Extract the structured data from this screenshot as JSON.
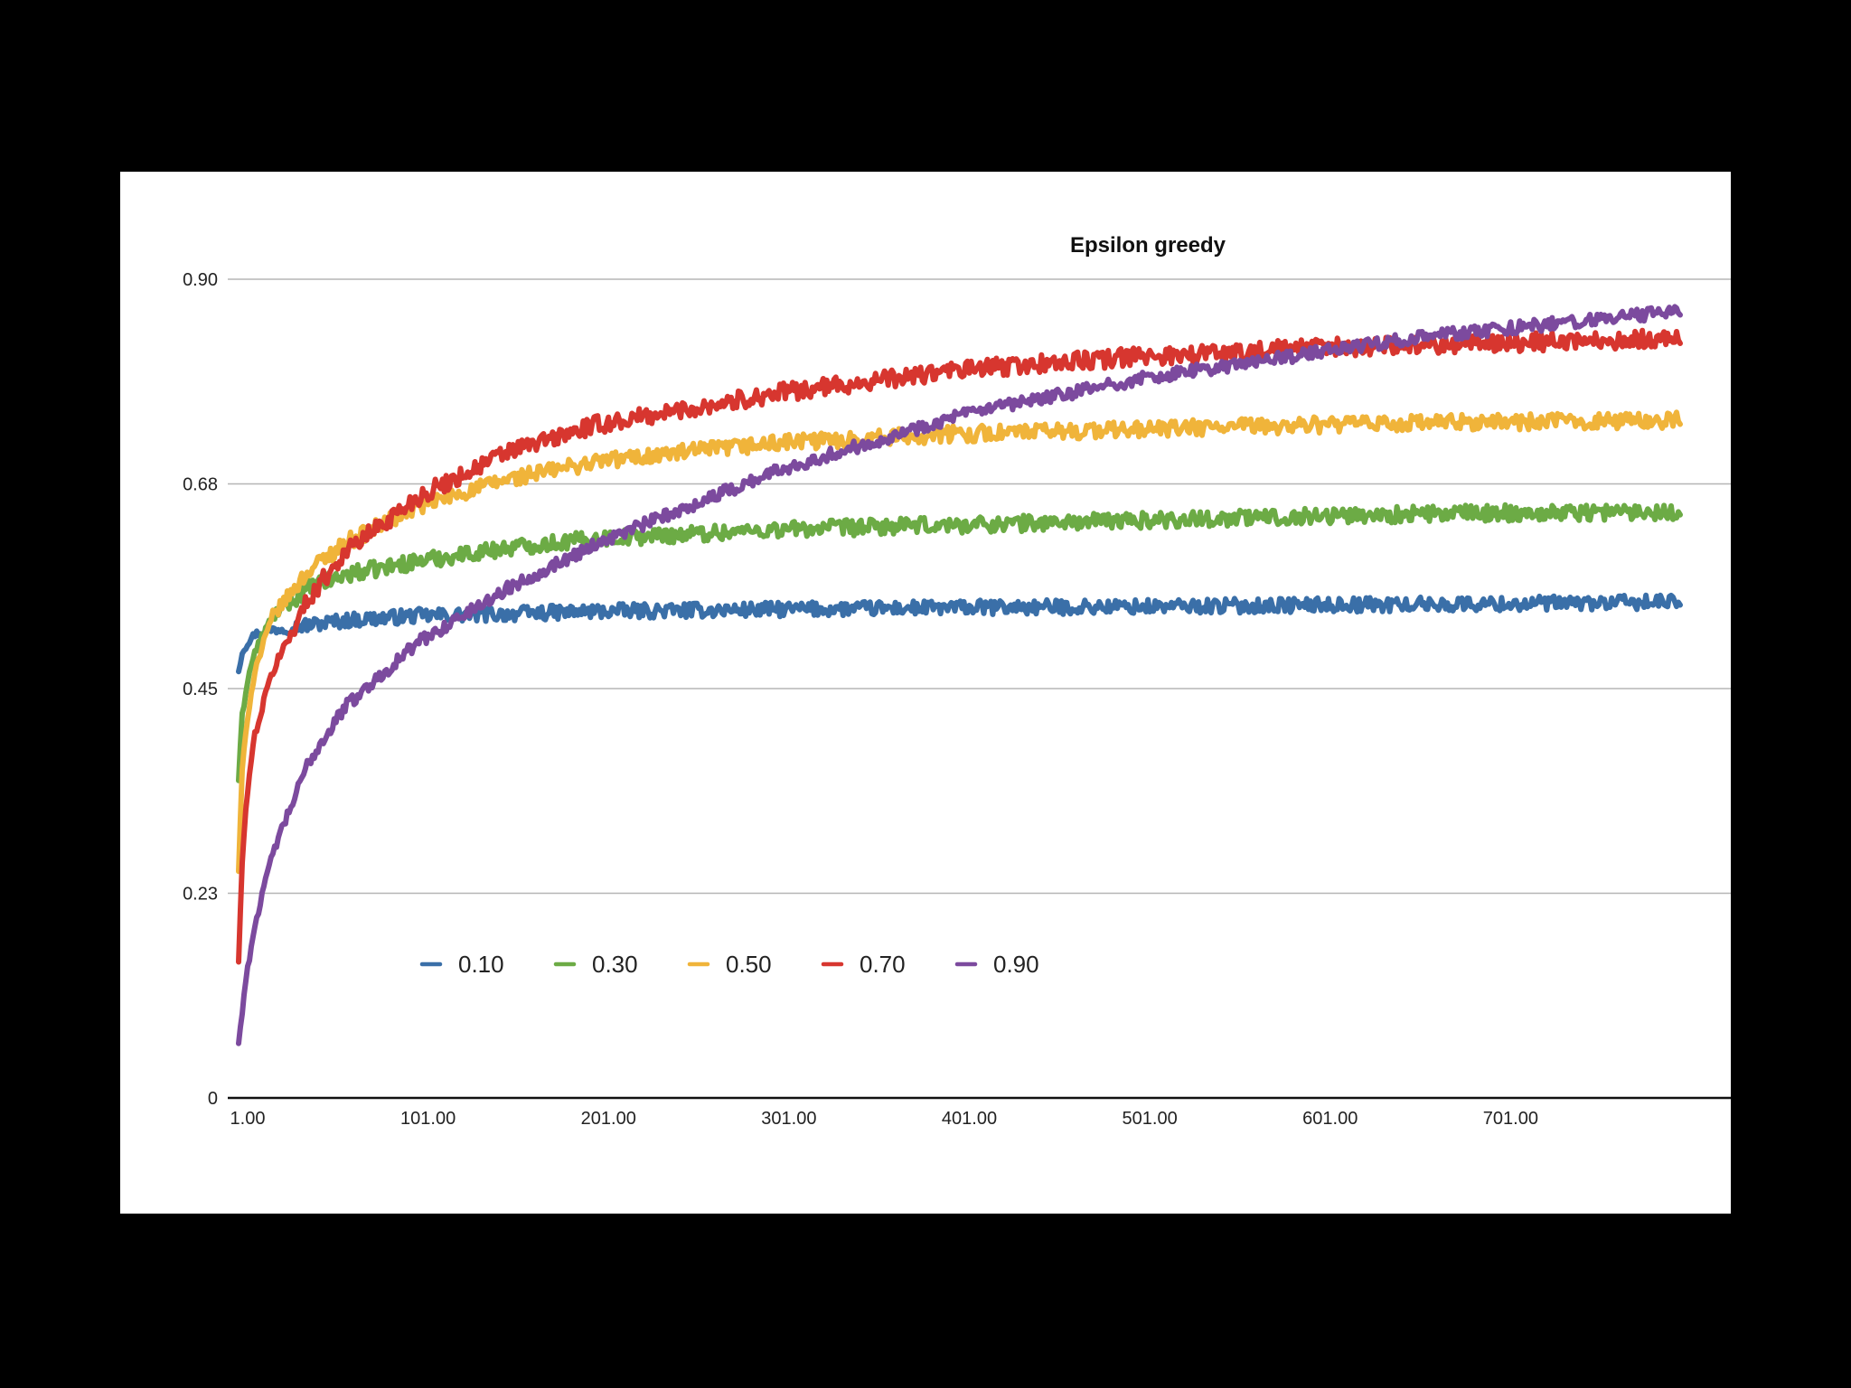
{
  "chart_data": {
    "type": "line",
    "title": "Epsilon greedy",
    "xlabel": "",
    "ylabel": "",
    "xlim": [
      1,
      801
    ],
    "ylim": [
      0,
      0.9
    ],
    "grid": true,
    "legend_position": "lower-left",
    "x_ticks": [
      1,
      101,
      201,
      301,
      401,
      501,
      601,
      701
    ],
    "x_tick_labels": [
      "1.00",
      "101.00",
      "201.00",
      "301.00",
      "401.00",
      "501.00",
      "601.00",
      "701.00"
    ],
    "y_ticks": [
      0,
      0.225,
      0.45,
      0.675,
      0.9
    ],
    "y_tick_labels": [
      "0",
      "0.23",
      "0.45",
      "0.68",
      "0.90"
    ],
    "series": [
      {
        "name": "0.10",
        "color": "#3a6fa8",
        "noise": 0.008,
        "points": [
          [
            1,
            0.47
          ],
          [
            3,
            0.49
          ],
          [
            6,
            0.5
          ],
          [
            10,
            0.51
          ],
          [
            20,
            0.515
          ],
          [
            40,
            0.52
          ],
          [
            60,
            0.525
          ],
          [
            100,
            0.53
          ],
          [
            150,
            0.532
          ],
          [
            200,
            0.535
          ],
          [
            300,
            0.537
          ],
          [
            400,
            0.539
          ],
          [
            500,
            0.54
          ],
          [
            600,
            0.542
          ],
          [
            700,
            0.543
          ],
          [
            800,
            0.545
          ]
        ]
      },
      {
        "name": "0.30",
        "color": "#6cab45",
        "noise": 0.009,
        "points": [
          [
            1,
            0.35
          ],
          [
            3,
            0.42
          ],
          [
            6,
            0.46
          ],
          [
            10,
            0.49
          ],
          [
            20,
            0.53
          ],
          [
            40,
            0.56
          ],
          [
            60,
            0.575
          ],
          [
            100,
            0.59
          ],
          [
            150,
            0.605
          ],
          [
            200,
            0.615
          ],
          [
            300,
            0.625
          ],
          [
            400,
            0.63
          ],
          [
            500,
            0.635
          ],
          [
            600,
            0.64
          ],
          [
            700,
            0.643
          ],
          [
            800,
            0.645
          ]
        ]
      },
      {
        "name": "0.50",
        "color": "#f0b43a",
        "noise": 0.009,
        "points": [
          [
            1,
            0.25
          ],
          [
            3,
            0.36
          ],
          [
            6,
            0.42
          ],
          [
            10,
            0.47
          ],
          [
            20,
            0.53
          ],
          [
            40,
            0.58
          ],
          [
            60,
            0.61
          ],
          [
            100,
            0.65
          ],
          [
            150,
            0.68
          ],
          [
            200,
            0.7
          ],
          [
            300,
            0.72
          ],
          [
            400,
            0.73
          ],
          [
            500,
            0.735
          ],
          [
            600,
            0.74
          ],
          [
            700,
            0.743
          ],
          [
            800,
            0.745
          ]
        ]
      },
      {
        "name": "0.70",
        "color": "#d7362f",
        "noise": 0.01,
        "points": [
          [
            1,
            0.15
          ],
          [
            3,
            0.26
          ],
          [
            6,
            0.34
          ],
          [
            10,
            0.4
          ],
          [
            20,
            0.47
          ],
          [
            40,
            0.55
          ],
          [
            60,
            0.6
          ],
          [
            100,
            0.66
          ],
          [
            150,
            0.71
          ],
          [
            200,
            0.74
          ],
          [
            300,
            0.775
          ],
          [
            400,
            0.8
          ],
          [
            500,
            0.815
          ],
          [
            600,
            0.825
          ],
          [
            700,
            0.83
          ],
          [
            800,
            0.835
          ]
        ]
      },
      {
        "name": "0.90",
        "color": "#7c4a9e",
        "noise": 0.007,
        "points": [
          [
            1,
            0.06
          ],
          [
            5,
            0.13
          ],
          [
            10,
            0.19
          ],
          [
            20,
            0.27
          ],
          [
            40,
            0.37
          ],
          [
            60,
            0.43
          ],
          [
            100,
            0.5
          ],
          [
            150,
            0.56
          ],
          [
            200,
            0.61
          ],
          [
            250,
            0.65
          ],
          [
            300,
            0.69
          ],
          [
            350,
            0.72
          ],
          [
            400,
            0.75
          ],
          [
            450,
            0.77
          ],
          [
            500,
            0.79
          ],
          [
            550,
            0.805
          ],
          [
            600,
            0.82
          ],
          [
            650,
            0.835
          ],
          [
            700,
            0.845
          ],
          [
            750,
            0.855
          ],
          [
            800,
            0.865
          ]
        ]
      }
    ]
  }
}
